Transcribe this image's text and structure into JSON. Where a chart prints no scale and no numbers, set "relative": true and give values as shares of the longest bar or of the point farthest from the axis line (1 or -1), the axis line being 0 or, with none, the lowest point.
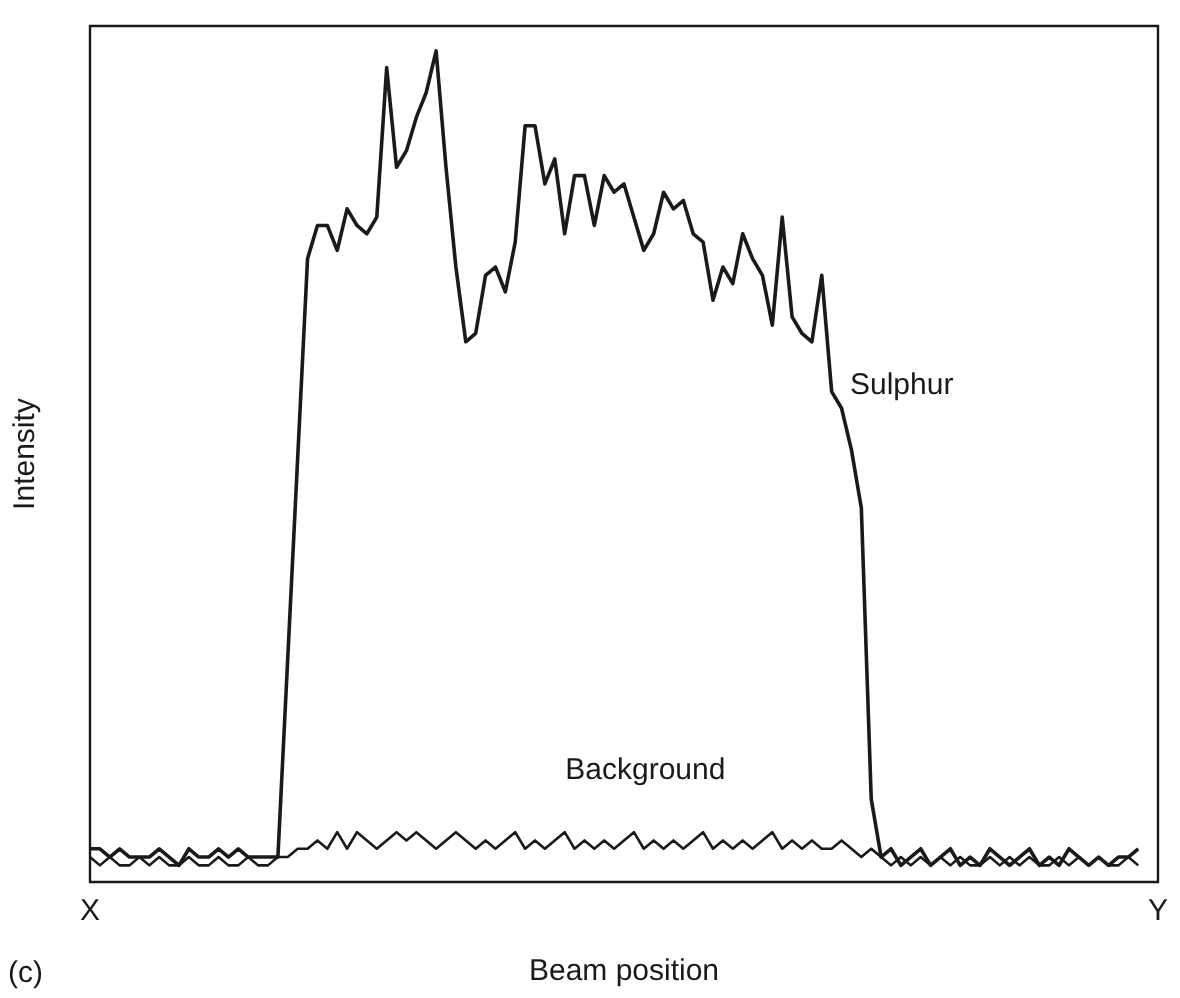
{
  "chart_data": {
    "type": "line",
    "relative": true,
    "xlabel": "Beam position",
    "ylabel": "Intensity",
    "annotations": [
      "(c)"
    ],
    "marker": "none",
    "line_style": "solid",
    "grid": false,
    "legend": false,
    "categories": [
      "X",
      null,
      null,
      null,
      null,
      null,
      null,
      null,
      null,
      null,
      null,
      null,
      null,
      null,
      null,
      null,
      null,
      null,
      null,
      null,
      null,
      null,
      null,
      null,
      null,
      null,
      null,
      null,
      null,
      null,
      null,
      null,
      null,
      null,
      null,
      null,
      null,
      null,
      null,
      null,
      null,
      null,
      null,
      null,
      null,
      null,
      null,
      null,
      null,
      null,
      null,
      null,
      null,
      null,
      null,
      null,
      null,
      null,
      null,
      null,
      null,
      null,
      null,
      null,
      null,
      null,
      null,
      null,
      null,
      null,
      null,
      null,
      null,
      null,
      null,
      null,
      null,
      null,
      null,
      null,
      null,
      null,
      null,
      null,
      null,
      null,
      null,
      null,
      null,
      null,
      null,
      null,
      null,
      null,
      null,
      null,
      null,
      null,
      null,
      null,
      null,
      null,
      null,
      null,
      null,
      null,
      null,
      null,
      "Y"
    ],
    "series": [
      {
        "name": "Sulphur",
        "color": "#1a1a1a",
        "values": [
          0.04,
          0.04,
          0.03,
          0.04,
          0.03,
          0.03,
          0.03,
          0.04,
          0.03,
          0.02,
          0.04,
          0.03,
          0.03,
          0.04,
          0.03,
          0.04,
          0.03,
          0.03,
          0.03,
          0.03,
          0.27,
          0.51,
          0.75,
          0.79,
          0.79,
          0.76,
          0.81,
          0.79,
          0.78,
          0.8,
          0.98,
          0.86,
          0.88,
          0.92,
          0.95,
          1.0,
          0.86,
          0.74,
          0.65,
          0.66,
          0.73,
          0.74,
          0.71,
          0.77,
          0.91,
          0.91,
          0.84,
          0.87,
          0.78,
          0.85,
          0.85,
          0.79,
          0.85,
          0.83,
          0.84,
          0.8,
          0.76,
          0.78,
          0.83,
          0.81,
          0.82,
          0.78,
          0.77,
          0.7,
          0.74,
          0.72,
          0.78,
          0.75,
          0.73,
          0.67,
          0.8,
          0.68,
          0.66,
          0.65,
          0.73,
          0.59,
          0.57,
          0.52,
          0.45,
          0.1,
          0.03,
          0.04,
          0.02,
          0.03,
          0.04,
          0.02,
          0.03,
          0.04,
          0.02,
          0.03,
          0.02,
          0.04,
          0.03,
          0.02,
          0.03,
          0.04,
          0.02,
          0.03,
          0.02,
          0.04,
          0.03,
          0.02,
          0.03,
          0.02,
          0.03,
          0.03,
          0.04,
          null,
          null
        ]
      },
      {
        "name": "Background",
        "color": "#1a1a1a",
        "values": [
          0.03,
          0.02,
          0.03,
          0.02,
          0.02,
          0.03,
          0.02,
          0.03,
          0.02,
          0.02,
          0.03,
          0.02,
          0.02,
          0.03,
          0.02,
          0.02,
          0.03,
          0.02,
          0.02,
          0.03,
          0.03,
          0.04,
          0.04,
          0.05,
          0.04,
          0.06,
          0.04,
          0.06,
          0.05,
          0.04,
          0.05,
          0.06,
          0.05,
          0.06,
          0.05,
          0.04,
          0.05,
          0.06,
          0.05,
          0.04,
          0.05,
          0.04,
          0.05,
          0.06,
          0.04,
          0.05,
          0.04,
          0.05,
          0.06,
          0.04,
          0.05,
          0.04,
          0.05,
          0.04,
          0.05,
          0.06,
          0.04,
          0.05,
          0.04,
          0.05,
          0.04,
          0.05,
          0.06,
          0.04,
          0.05,
          0.04,
          0.05,
          0.04,
          0.05,
          0.06,
          0.04,
          0.05,
          0.04,
          0.05,
          0.04,
          0.04,
          0.05,
          0.04,
          0.03,
          0.04,
          0.03,
          0.02,
          0.03,
          0.02,
          0.03,
          0.02,
          0.03,
          0.02,
          0.03,
          0.02,
          0.02,
          0.03,
          0.02,
          0.03,
          0.02,
          0.03,
          0.02,
          0.02,
          0.03,
          0.02,
          0.03,
          0.02,
          0.03,
          0.02,
          0.02,
          0.03,
          0.02,
          null,
          null
        ]
      }
    ]
  }
}
